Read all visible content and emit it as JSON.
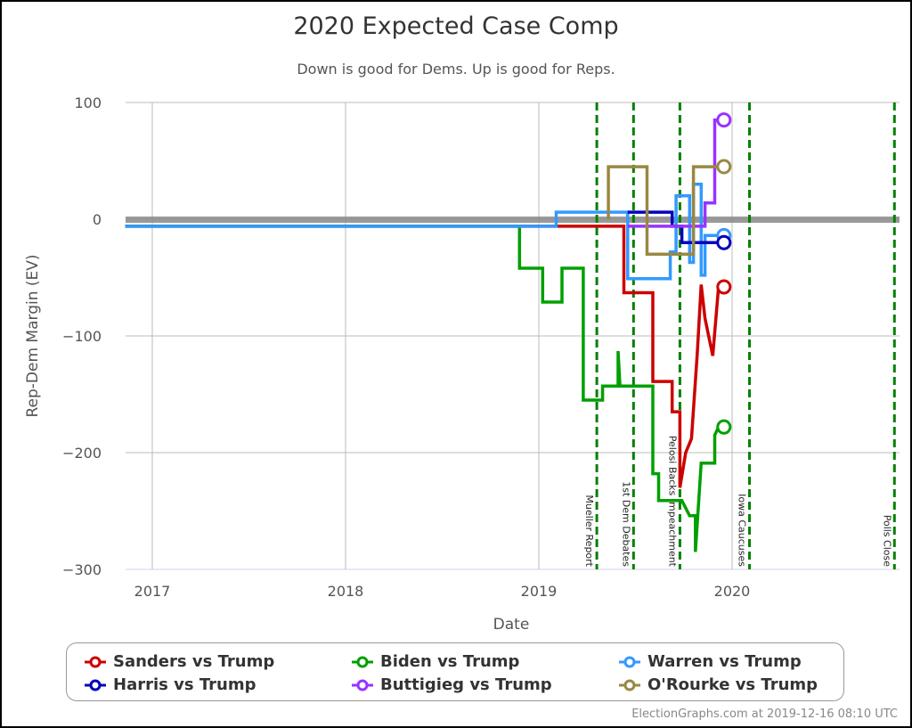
{
  "title": "2020 Expected Case Comp",
  "subtitle": "Down is good for Dems. Up is good for Reps.",
  "credit": "ElectionGraphs.com at 2019-12-16 08:10 UTC",
  "chart_data": {
    "type": "line",
    "title": "2020 Expected Case Comp",
    "subtitle": "Down is good for Dems. Up is good for Reps.",
    "xlabel": "Date",
    "ylabel": "Rep-Dem Margin (EV)",
    "xlim": [
      2016.86,
      2020.86
    ],
    "ylim": [
      -300,
      100
    ],
    "x_ticks": [
      "2017",
      "2018",
      "2019",
      "2020"
    ],
    "y_ticks": [
      "100",
      "0",
      "−100",
      "−200",
      "−300"
    ],
    "grid": true,
    "legend_position": "bottom",
    "events": [
      {
        "label": "Mueller Report",
        "x": 2019.3
      },
      {
        "label": "1st Dem Debates",
        "x": 2019.49
      },
      {
        "label": "Pelosi Backs Impeachment",
        "x": 2019.73
      },
      {
        "label": "Iowa Caucuses",
        "x": 2020.09
      },
      {
        "label": "Polls Close",
        "x": 2020.84
      }
    ],
    "series": [
      {
        "name": "Sanders vs Trump",
        "color": "#cc0000",
        "final": -58,
        "x": [
          2016.86,
          2019.44,
          2019.44,
          2019.59,
          2019.59,
          2019.69,
          2019.69,
          2019.73,
          2019.73,
          2019.76,
          2019.76,
          2019.79,
          2019.79,
          2019.82,
          2019.82,
          2019.84,
          2019.84,
          2019.86,
          2019.86,
          2019.9,
          2019.9,
          2019.93
        ],
        "values": [
          -6,
          -6,
          -63,
          -63,
          -139,
          -139,
          -165,
          -165,
          -230,
          -200,
          -200,
          -188,
          -188,
          -115,
          -115,
          -56,
          -56,
          -85,
          -85,
          -117,
          -117,
          -58
        ]
      },
      {
        "name": "Biden vs Trump",
        "color": "#00a000",
        "final": -178,
        "x": [
          2016.86,
          2018.9,
          2018.9,
          2019.02,
          2019.02,
          2019.12,
          2019.12,
          2019.23,
          2019.23,
          2019.33,
          2019.33,
          2019.41,
          2019.41,
          2019.42,
          2019.42,
          2019.59,
          2019.59,
          2019.62,
          2019.62,
          2019.74,
          2019.74,
          2019.78,
          2019.78,
          2019.81,
          2019.81,
          2019.84,
          2019.84,
          2019.91,
          2019.91,
          2019.93
        ],
        "values": [
          -6,
          -6,
          -42,
          -42,
          -71,
          -71,
          -42,
          -42,
          -155,
          -155,
          -143,
          -143,
          -113,
          -143,
          -143,
          -143,
          -218,
          -218,
          -241,
          -241,
          -241,
          -254,
          -254,
          -254,
          -285,
          -209,
          -209,
          -209,
          -185,
          -178
        ]
      },
      {
        "name": "Warren vs Trump",
        "color": "#3399ff",
        "final": -14,
        "x": [
          2016.86,
          2019.09,
          2019.09,
          2019.46,
          2019.46,
          2019.68,
          2019.68,
          2019.71,
          2019.71,
          2019.78,
          2019.78,
          2019.8,
          2019.8,
          2019.84,
          2019.84,
          2019.86,
          2019.86,
          2019.93
        ],
        "values": [
          -6,
          -6,
          6,
          6,
          -51,
          -51,
          -28,
          -28,
          20,
          20,
          -37,
          -37,
          30,
          30,
          -48,
          -48,
          -14,
          -14
        ]
      },
      {
        "name": "Harris vs Trump",
        "color": "#0000bb",
        "final": -20,
        "x": [
          2019.46,
          2019.69,
          2019.69,
          2019.74,
          2019.74,
          2019.93
        ],
        "values": [
          6,
          6,
          -6,
          -6,
          -20,
          -20
        ]
      },
      {
        "name": "Buttigieg vs Trump",
        "color": "#9933ff",
        "final": 85,
        "x": [
          2019.46,
          2019.86,
          2019.86,
          2019.88,
          2019.88,
          2019.91,
          2019.91,
          2019.93
        ],
        "values": [
          -6,
          -6,
          14,
          14,
          14,
          14,
          85,
          85
        ]
      },
      {
        "name": "O'Rourke vs Trump",
        "color": "#998844",
        "final": 45,
        "x": [
          2019.36,
          2019.36,
          2019.56,
          2019.56,
          2019.71,
          2019.71,
          2019.8,
          2019.8,
          2019.93
        ],
        "values": [
          0,
          45,
          45,
          -30,
          -30,
          -30,
          -30,
          45,
          45
        ]
      }
    ]
  },
  "legend": [
    {
      "label": "Sanders vs Trump",
      "color": "#cc0000"
    },
    {
      "label": "Biden vs Trump",
      "color": "#00a000"
    },
    {
      "label": "Warren vs Trump",
      "color": "#3399ff"
    },
    {
      "label": "Harris vs Trump",
      "color": "#0000bb"
    },
    {
      "label": "Buttigieg vs Trump",
      "color": "#9933ff"
    },
    {
      "label": "O'Rourke vs Trump",
      "color": "#998844"
    }
  ]
}
